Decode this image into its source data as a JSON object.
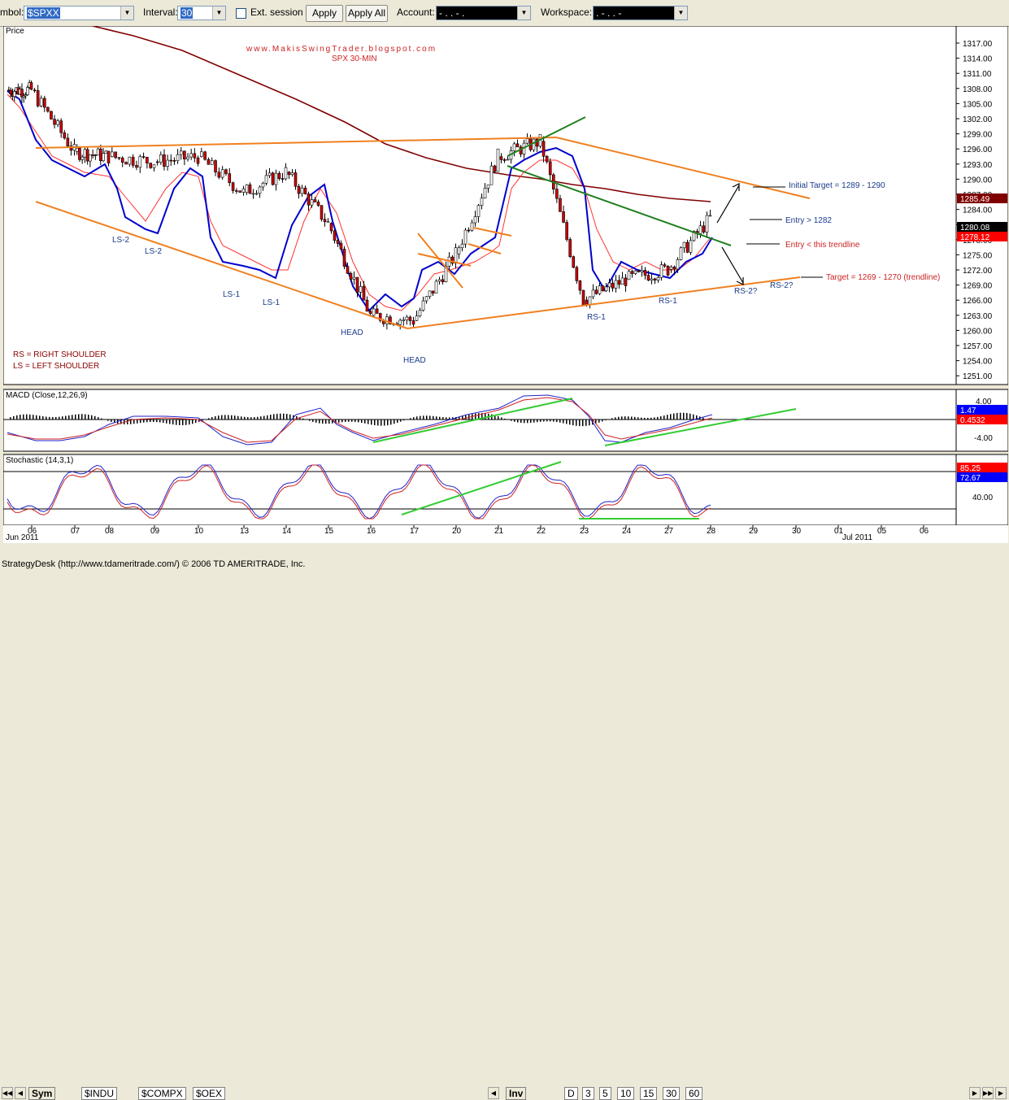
{
  "toolbar": {
    "symbol_label": "mbol:",
    "symbol_value": "$SPXX",
    "interval_label": "Interval:",
    "interval_value": "30",
    "ext_session_label": "Ext. session",
    "apply_label": "Apply",
    "apply_all_label": "Apply All",
    "account_label": "Account:",
    "account_value": "-  .   .   -   .",
    "workspace_label": "Workspace:",
    "workspace_value": ".     -  .  . -"
  },
  "chart": {
    "price_pane_label": "Price",
    "blog_label": "www.MakisSwingTrader.blogspot.com",
    "title": "SPX 30-MIN",
    "price_ticks": [
      "1317.00",
      "1314.00",
      "1311.00",
      "1308.00",
      "1305.00",
      "1302.00",
      "1299.00",
      "1296.00",
      "1293.00",
      "1290.00",
      "1287.00",
      "1284.00",
      "1281.00",
      "1278.00",
      "1275.00",
      "1272.00",
      "1269.00",
      "1266.00",
      "1263.00",
      "1260.00",
      "1257.00",
      "1254.00",
      "1251.00"
    ],
    "price_badges": [
      {
        "value": "1285.49",
        "color": "#800000",
        "text_color": "#ffffff"
      },
      {
        "value": "1280.08",
        "color": "#000000",
        "text_color": "#ffffff"
      },
      {
        "value": "1278.12",
        "color": "#ff0000",
        "text_color": "#ffffff"
      }
    ],
    "annotations": {
      "ls2_a": "LS-2",
      "ls2_b": "LS-2",
      "ls1_a": "LS-1",
      "ls1_b": "LS-1",
      "head_a": "HEAD",
      "head_b": "HEAD",
      "rs1_a": "RS-1",
      "rs1_b": "RS-1",
      "rs2_a": "RS-2?",
      "rs2_b": "RS-2?",
      "initial_target": "Initial Target = 1289 - 1290",
      "entry_gt": "Entry > 1282",
      "entry_trend": "Entry < this trendline",
      "target": "Target = 1269 - 1270 (trendline)",
      "legend_rs": "RS = RIGHT SHOULDER",
      "legend_ls": "LS = LEFT SHOULDER"
    },
    "macd_label": "MACD (Close,12,26,9)",
    "macd_ticks": [
      "4.00",
      "-4.00"
    ],
    "macd_badges": [
      {
        "value": "1.47",
        "color": "#0000ff"
      },
      {
        "value": "0.4532",
        "color": "#ff0000"
      }
    ],
    "stoch_label": "Stochastic (14,3,1)",
    "stoch_ticks": [
      "40.00"
    ],
    "stoch_badges": [
      {
        "value": "85.25",
        "color": "#ff0000"
      },
      {
        "value": "72.67",
        "color": "#0000ff"
      }
    ],
    "x_labels": [
      "06",
      "07",
      "08",
      "09",
      "10",
      "13",
      "14",
      "15",
      "16",
      "17",
      "20",
      "21",
      "22",
      "23",
      "24",
      "27",
      "28",
      "29",
      "30",
      "01",
      "05",
      "06"
    ],
    "month_left": "Jun 2011",
    "month_right": "Jul 2011"
  },
  "tabs_left": [
    "Sym",
    "$INDU",
    "$COMPX",
    "$OEX"
  ],
  "tabs_right": [
    "Inv",
    "D",
    "3",
    "5",
    "10",
    "15",
    "30",
    "60"
  ],
  "status_text": "StrategyDesk (http://www.tdameritrade.com/) © 2006 TD AMERITRADE, Inc.",
  "chart_data": {
    "type": "candlestick",
    "title": "SPX 30-MIN",
    "ylabel": "Price",
    "ylim": [
      1249.5,
      1319.5
    ],
    "x": [
      "06",
      "07",
      "08",
      "09",
      "10",
      "13",
      "14",
      "15",
      "16",
      "17",
      "20",
      "21",
      "22",
      "23",
      "24",
      "27",
      "28"
    ],
    "series": [
      {
        "values": [
          1307,
          1295,
          1294,
          1293,
          1294,
          1287,
          1291,
          1281,
          1263,
          1262,
          1275,
          1294,
          1297,
          1266,
          1270,
          1272,
          1282
        ]
      }
    ]
  }
}
